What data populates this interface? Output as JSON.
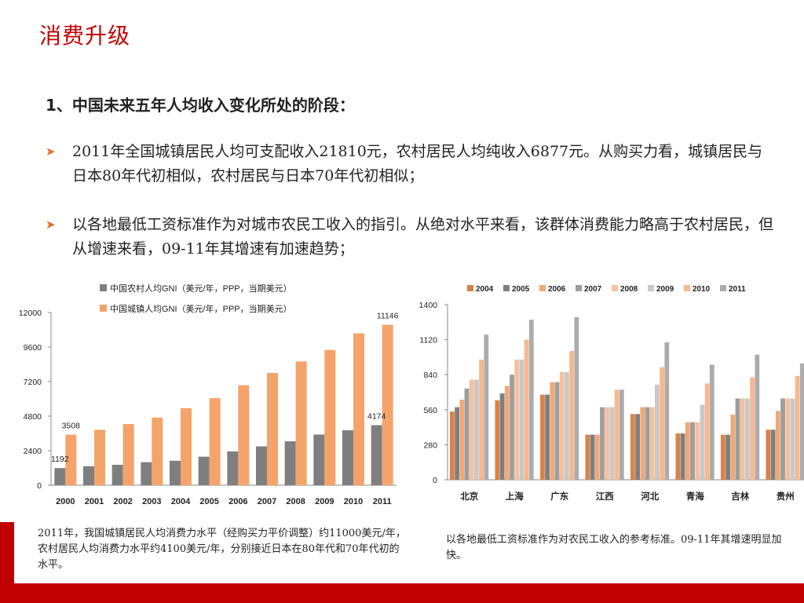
{
  "slide": {
    "title": "消费升级",
    "heading": "1、中国未来五年人均收入变化所处的阶段：",
    "bullets": [
      "2011年全国城镇居民人均可支配收入21810元，农村居民人均纯收入6877元。从购买力看，城镇居民与日本80年代初相似，农村居民与日本70年代初相似；",
      "以各地最低工资标准作为对城市农民工收入的指引。从绝对水平来看，该群体消费能力略高于农村居民，但从增速来看，09-11年其增速有加速趋势；"
    ],
    "captions": [
      "2011年，我国城镇居民人均消费力水平（经购买力平价调整）约11000美元/年，农村居民人均消费力水平约4100美元/年，分别接近日本在80年代和70年代初的水平。",
      "以各地最低工资标准作为对农民工收入的参考标准。09-11年其增速明显加快。"
    ],
    "colors": {
      "title": "#c00000",
      "bullet_marker": "#e07020",
      "footer_bar": "#c00000"
    }
  },
  "chart_data": [
    {
      "type": "bar",
      "categories": [
        "2000",
        "2001",
        "2002",
        "2003",
        "2004",
        "2005",
        "2006",
        "2007",
        "2008",
        "2009",
        "2010",
        "2011"
      ],
      "series": [
        {
          "name": "中国农村人均GNI（美元/年，PPP，当期美元）",
          "color": "#7f7f7f",
          "values": [
            1192,
            1320,
            1420,
            1600,
            1700,
            1980,
            2350,
            2700,
            3050,
            3520,
            3820,
            4174
          ]
        },
        {
          "name": "中国城镇人均GNI（美元/年，PPP，当期美元）",
          "color": "#f4a46a",
          "values": [
            3508,
            3850,
            4250,
            4700,
            5350,
            6050,
            6950,
            7800,
            8600,
            9400,
            10550,
            11146
          ]
        }
      ],
      "data_labels": [
        {
          "series": 0,
          "index": 0,
          "text": "1192"
        },
        {
          "series": 1,
          "index": 0,
          "text": "3508"
        },
        {
          "series": 0,
          "index": 11,
          "text": "4174"
        },
        {
          "series": 1,
          "index": 11,
          "text": "11146"
        }
      ],
      "ylim": [
        0,
        12000
      ],
      "yticks": [
        "0",
        "2400",
        "4800",
        "7200",
        "9600",
        "12000"
      ],
      "legend": "top"
    },
    {
      "type": "bar",
      "categories": [
        "北京",
        "上海",
        "广东",
        "江西",
        "河北",
        "青海",
        "吉林",
        "贵州"
      ],
      "series": [
        {
          "name": "2004",
          "color": "#d9824a",
          "values": [
            545,
            635,
            680,
            360,
            525,
            370,
            360,
            400
          ]
        },
        {
          "name": "2005",
          "color": "#7f7f7f",
          "values": [
            580,
            690,
            680,
            360,
            525,
            370,
            360,
            400
          ]
        },
        {
          "name": "2006",
          "color": "#f0a878",
          "values": [
            640,
            750,
            780,
            360,
            580,
            460,
            520,
            550
          ]
        },
        {
          "name": "2007",
          "color": "#9e9e9e",
          "values": [
            730,
            840,
            780,
            580,
            580,
            460,
            650,
            650
          ]
        },
        {
          "name": "2008",
          "color": "#f5c0a0",
          "values": [
            800,
            960,
            860,
            580,
            580,
            460,
            650,
            650
          ]
        },
        {
          "name": "2009",
          "color": "#c8c8c8",
          "values": [
            800,
            960,
            860,
            580,
            760,
            600,
            650,
            650
          ]
        },
        {
          "name": "2010",
          "color": "#f7b890",
          "values": [
            960,
            1120,
            1030,
            720,
            900,
            770,
            820,
            830
          ]
        },
        {
          "name": "2011",
          "color": "#acacac",
          "values": [
            1160,
            1280,
            1300,
            720,
            1100,
            920,
            1000,
            930
          ]
        }
      ],
      "ylim": [
        0,
        1400
      ],
      "yticks": [
        "0",
        "280",
        "560",
        "840",
        "1120",
        "1400"
      ],
      "legend": "top"
    }
  ]
}
